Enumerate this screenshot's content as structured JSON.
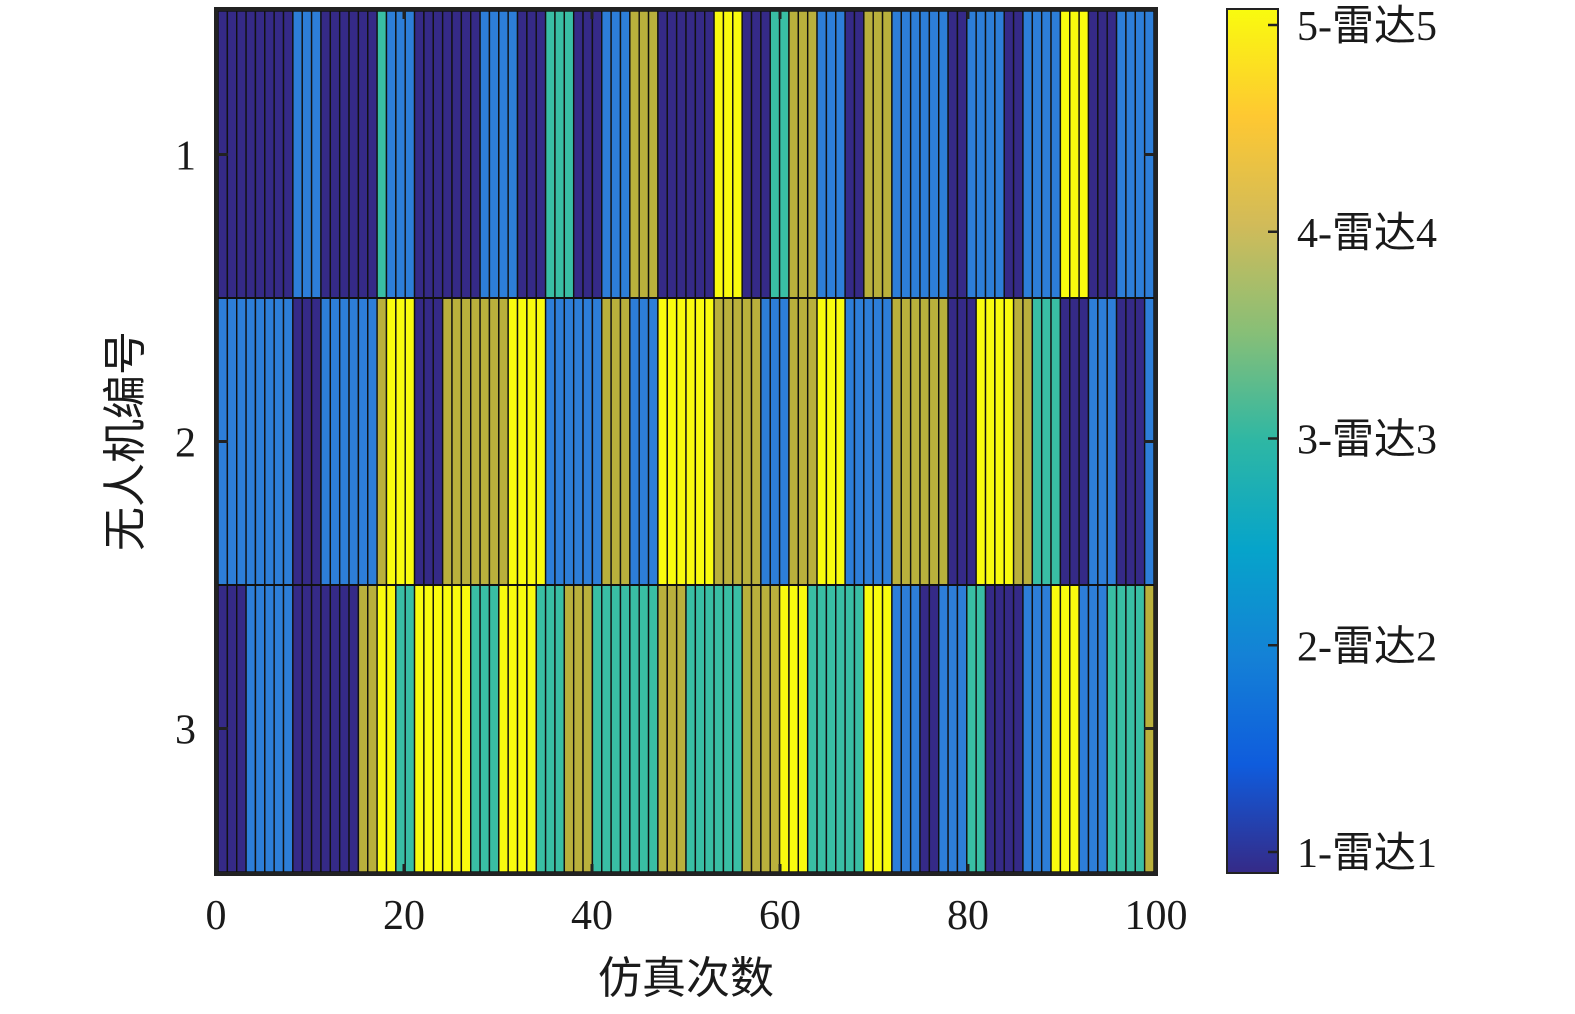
{
  "chart_data": {
    "type": "heatmap",
    "title": "",
    "xlabel": "仿真次数",
    "ylabel": "无人机编号",
    "xlim": [
      0,
      100
    ],
    "x_ticks": [
      "0",
      "20",
      "40",
      "60",
      "80",
      "100"
    ],
    "y_ticks": [
      "1",
      "2",
      "3"
    ],
    "rows": [
      {
        "name": "1",
        "values": [
          1,
          1,
          1,
          1,
          1,
          1,
          1,
          1,
          2,
          2,
          2,
          1,
          1,
          1,
          1,
          1,
          1,
          3,
          2,
          2,
          2,
          1,
          1,
          1,
          1,
          1,
          1,
          1,
          2,
          2,
          2,
          2,
          1,
          1,
          1,
          3,
          3,
          3,
          1,
          1,
          1,
          2,
          2,
          2,
          4,
          4,
          4,
          1,
          1,
          1,
          1,
          1,
          1,
          5,
          5,
          5,
          1,
          1,
          1,
          3,
          3,
          4,
          4,
          4,
          2,
          2,
          2,
          1,
          1,
          4,
          4,
          4,
          2,
          2,
          2,
          2,
          2,
          2,
          1,
          1,
          2,
          2,
          2,
          2,
          1,
          1,
          2,
          2,
          2,
          2,
          5,
          5,
          5,
          1,
          1,
          1,
          2,
          2,
          2,
          2
        ]
      },
      {
        "name": "2",
        "values": [
          2,
          2,
          2,
          2,
          2,
          2,
          2,
          2,
          1,
          1,
          1,
          2,
          2,
          2,
          2,
          2,
          2,
          4,
          5,
          5,
          5,
          1,
          1,
          1,
          4,
          4,
          4,
          4,
          4,
          4,
          4,
          5,
          5,
          5,
          5,
          2,
          2,
          2,
          2,
          2,
          2,
          4,
          4,
          4,
          2,
          2,
          2,
          5,
          5,
          5,
          5,
          5,
          5,
          4,
          4,
          4,
          4,
          4,
          2,
          2,
          2,
          4,
          4,
          4,
          5,
          5,
          5,
          2,
          2,
          2,
          2,
          2,
          4,
          4,
          4,
          4,
          4,
          4,
          1,
          1,
          1,
          5,
          5,
          5,
          5,
          4,
          4,
          3,
          3,
          3,
          1,
          1,
          1,
          2,
          2,
          2,
          1,
          1,
          1,
          2
        ]
      },
      {
        "name": "3",
        "values": [
          1,
          1,
          1,
          2,
          2,
          2,
          2,
          2,
          1,
          1,
          1,
          1,
          1,
          1,
          1,
          4,
          4,
          5,
          5,
          3,
          3,
          5,
          5,
          5,
          5,
          5,
          5,
          3,
          3,
          3,
          5,
          5,
          5,
          5,
          3,
          3,
          3,
          4,
          4,
          4,
          3,
          3,
          3,
          3,
          3,
          3,
          3,
          4,
          4,
          4,
          3,
          3,
          3,
          3,
          3,
          3,
          4,
          4,
          4,
          4,
          5,
          5,
          5,
          3,
          3,
          3,
          3,
          3,
          3,
          5,
          5,
          5,
          2,
          2,
          2,
          1,
          1,
          2,
          2,
          2,
          3,
          3,
          1,
          1,
          1,
          1,
          2,
          2,
          2,
          5,
          5,
          5,
          2,
          2,
          2,
          3,
          3,
          3,
          3,
          4
        ]
      }
    ],
    "colorbar": {
      "range": [
        1,
        5
      ],
      "tick_values": [
        1,
        2,
        3,
        4,
        5
      ],
      "tick_labels": [
        "1-雷达1",
        "2-雷达2",
        "3-雷达3",
        "4-雷达4",
        "5-雷达5"
      ],
      "colormap": "parula",
      "colors": [
        "#352a87",
        "#2d7ed8",
        "#39bea4",
        "#b9b03c",
        "#f9fb0e"
      ]
    }
  }
}
